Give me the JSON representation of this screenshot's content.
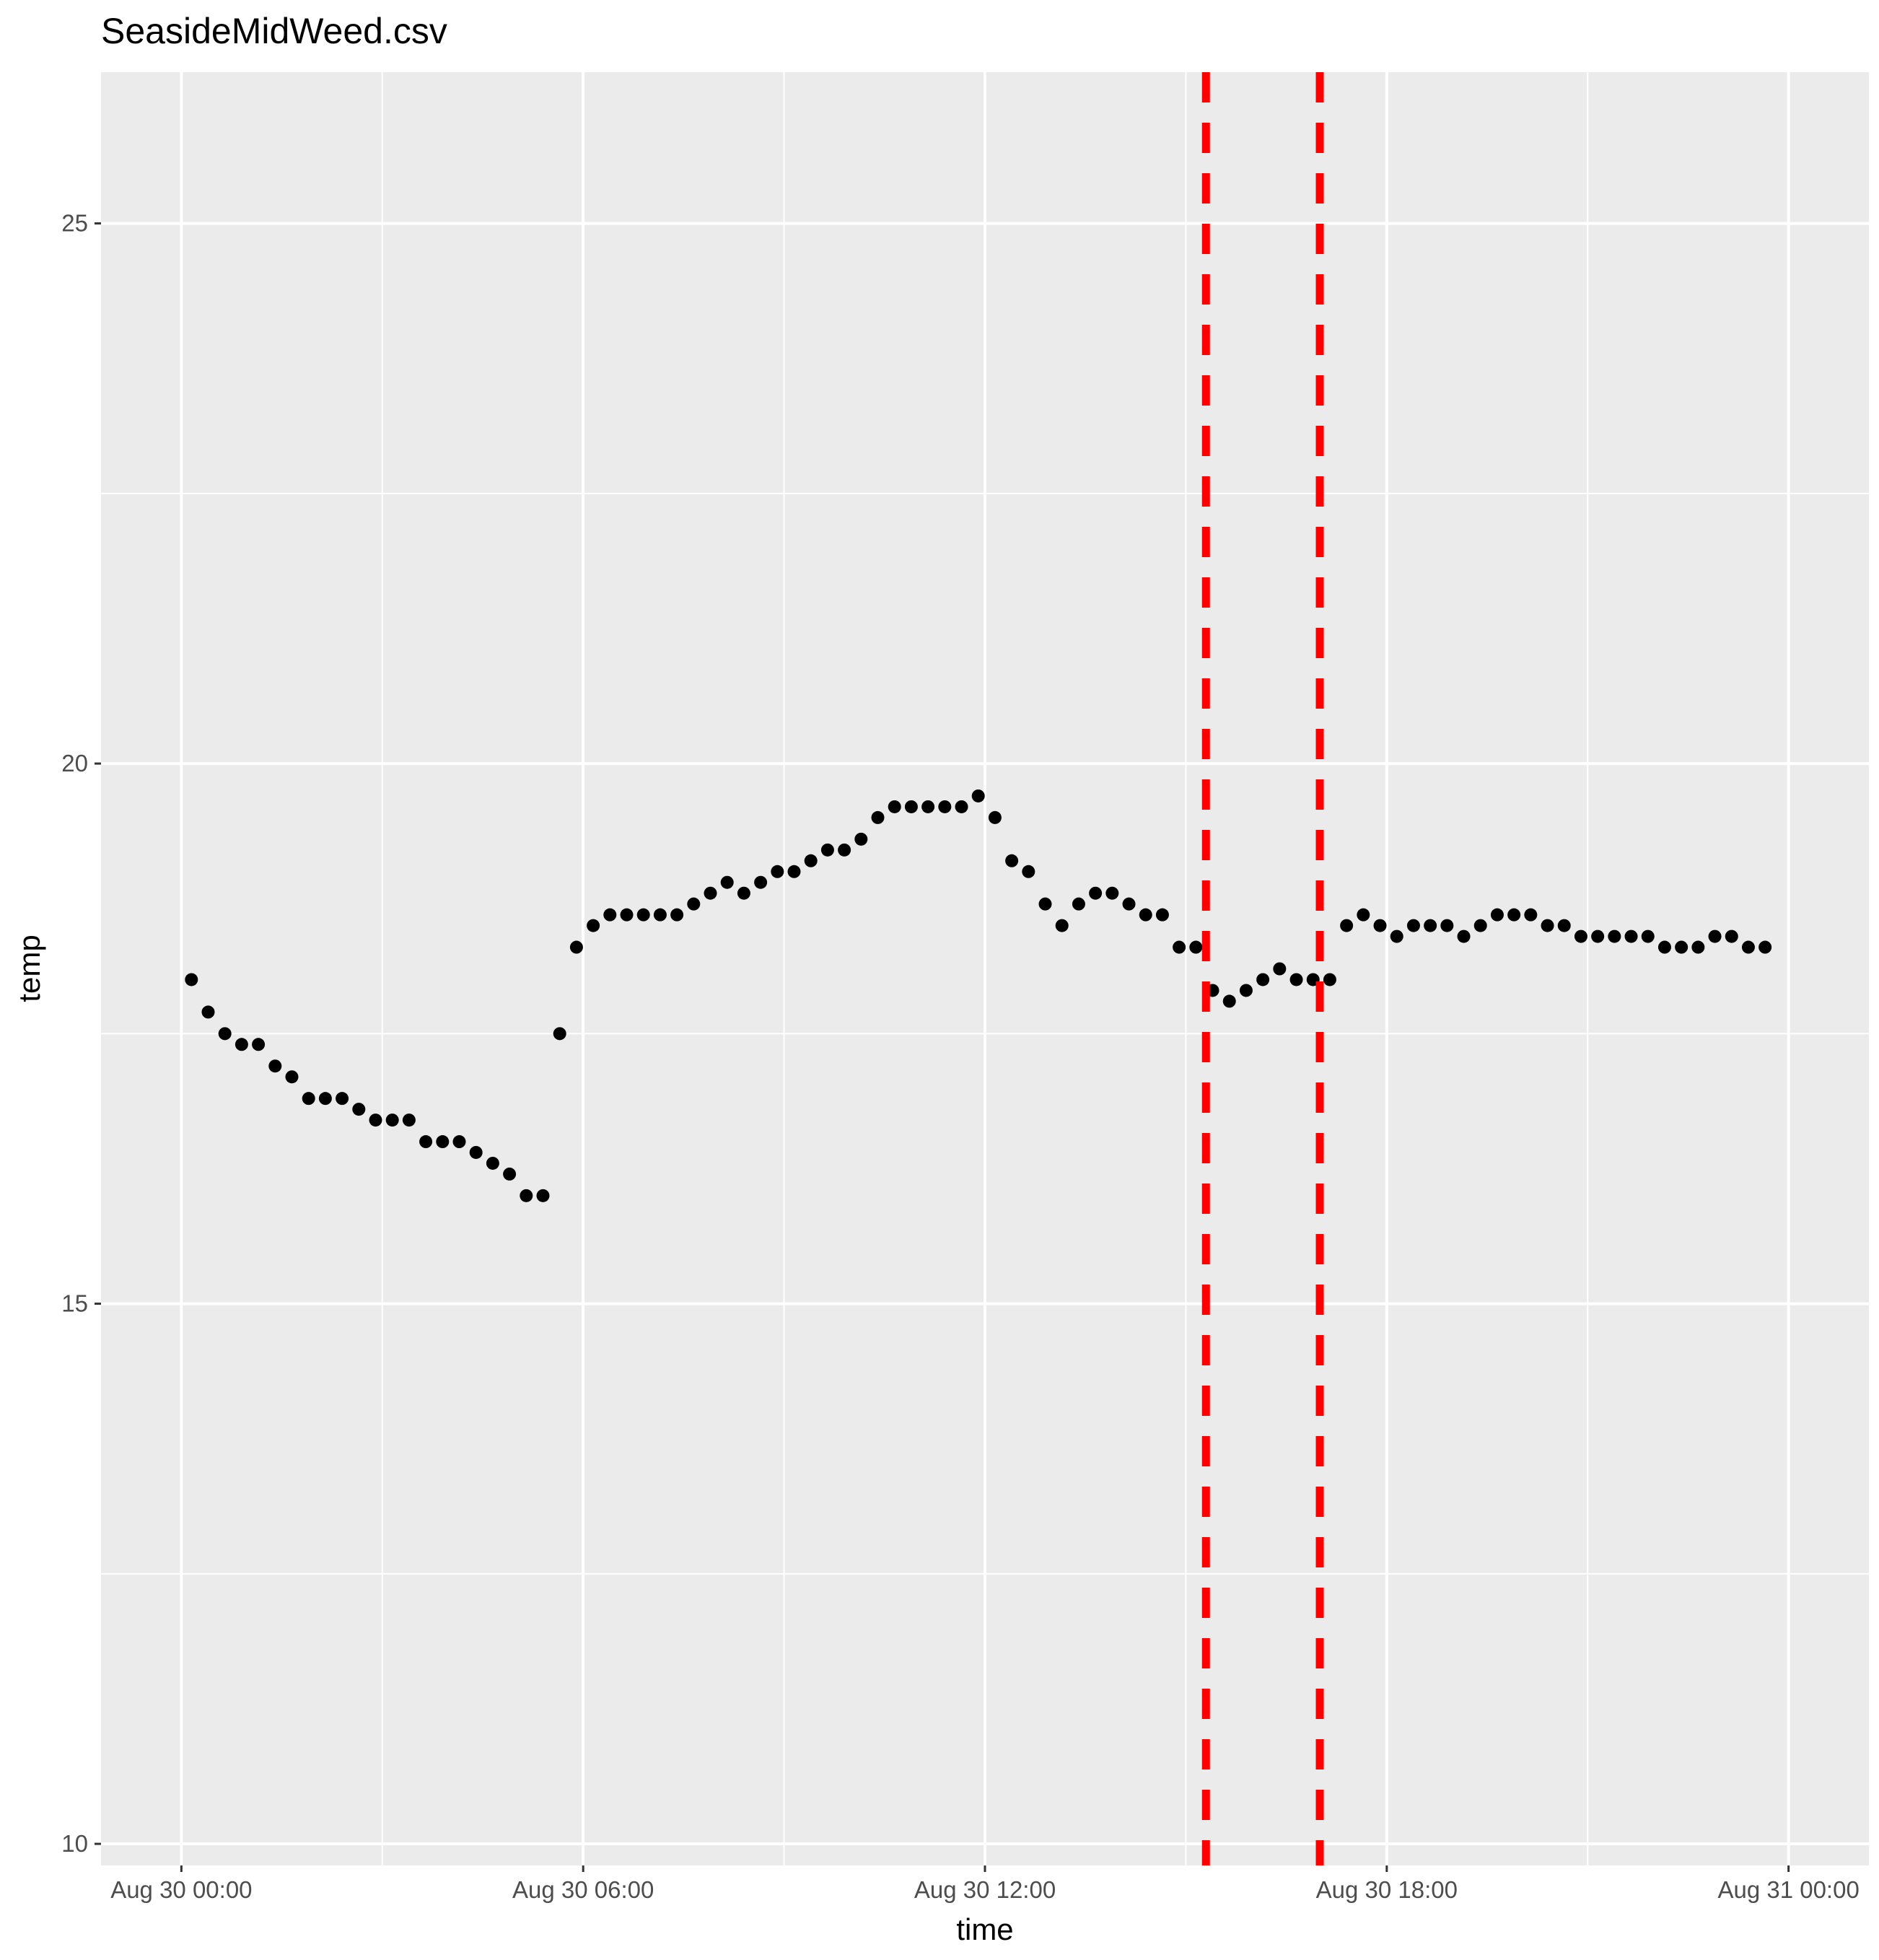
{
  "chart_data": {
    "type": "scatter",
    "title": "SeasideMidWeed.csv",
    "xlabel": "time",
    "ylabel": "temp",
    "x_unit": "hours from Aug 30 00:00",
    "xlim": [
      -1.2,
      25.2
    ],
    "ylim": [
      9.8,
      26.4
    ],
    "x_ticks": [
      {
        "value": 0,
        "label": "Aug 30 00:00"
      },
      {
        "value": 6,
        "label": "Aug 30 06:00"
      },
      {
        "value": 12,
        "label": "Aug 30 12:00"
      },
      {
        "value": 18,
        "label": "Aug 30 18:00"
      },
      {
        "value": 24,
        "label": "Aug 31 00:00"
      }
    ],
    "x_minor_ticks": [
      3,
      9,
      15,
      21
    ],
    "y_ticks": [
      {
        "value": 10,
        "label": "10"
      },
      {
        "value": 15,
        "label": "15"
      },
      {
        "value": 20,
        "label": "20"
      },
      {
        "value": 25,
        "label": "25"
      }
    ],
    "y_minor_ticks": [
      12.5,
      17.5,
      22.5
    ],
    "grid": true,
    "background": "#ebebeb",
    "point_color": "#000000",
    "vlines": {
      "x": [
        15.3,
        17.0
      ],
      "color": "#ff0000",
      "style": "dashed"
    },
    "series": [
      {
        "points": [
          [
            0.15,
            18.0
          ],
          [
            0.4,
            17.7
          ],
          [
            0.65,
            17.5
          ],
          [
            0.9,
            17.4
          ],
          [
            1.15,
            17.4
          ],
          [
            1.4,
            17.2
          ],
          [
            1.65,
            17.1
          ],
          [
            1.9,
            16.9
          ],
          [
            2.15,
            16.9
          ],
          [
            2.4,
            16.9
          ],
          [
            2.65,
            16.8
          ],
          [
            2.9,
            16.7
          ],
          [
            3.15,
            16.7
          ],
          [
            3.4,
            16.7
          ],
          [
            3.65,
            16.5
          ],
          [
            3.9,
            16.5
          ],
          [
            4.15,
            16.5
          ],
          [
            4.4,
            16.4
          ],
          [
            4.65,
            16.3
          ],
          [
            4.9,
            16.2
          ],
          [
            5.15,
            16.0
          ],
          [
            5.4,
            16.0
          ],
          [
            5.65,
            17.5
          ],
          [
            5.9,
            18.3
          ],
          [
            6.15,
            18.5
          ],
          [
            6.4,
            18.6
          ],
          [
            6.65,
            18.6
          ],
          [
            6.9,
            18.6
          ],
          [
            7.15,
            18.6
          ],
          [
            7.4,
            18.6
          ],
          [
            7.65,
            18.7
          ],
          [
            7.9,
            18.8
          ],
          [
            8.15,
            18.9
          ],
          [
            8.4,
            18.8
          ],
          [
            8.65,
            18.9
          ],
          [
            8.9,
            19.0
          ],
          [
            9.15,
            19.0
          ],
          [
            9.4,
            19.1
          ],
          [
            9.65,
            19.2
          ],
          [
            9.9,
            19.2
          ],
          [
            10.15,
            19.3
          ],
          [
            10.4,
            19.5
          ],
          [
            10.65,
            19.6
          ],
          [
            10.9,
            19.6
          ],
          [
            11.15,
            19.6
          ],
          [
            11.4,
            19.6
          ],
          [
            11.65,
            19.6
          ],
          [
            11.9,
            19.7
          ],
          [
            12.15,
            19.5
          ],
          [
            12.4,
            19.1
          ],
          [
            12.65,
            19.0
          ],
          [
            12.9,
            18.7
          ],
          [
            13.15,
            18.5
          ],
          [
            13.4,
            18.7
          ],
          [
            13.65,
            18.8
          ],
          [
            13.9,
            18.8
          ],
          [
            14.15,
            18.7
          ],
          [
            14.4,
            18.6
          ],
          [
            14.65,
            18.6
          ],
          [
            14.9,
            18.3
          ],
          [
            15.15,
            18.3
          ],
          [
            15.4,
            17.9
          ],
          [
            15.65,
            17.8
          ],
          [
            15.9,
            17.9
          ],
          [
            16.15,
            18.0
          ],
          [
            16.4,
            18.1
          ],
          [
            16.65,
            18.0
          ],
          [
            16.9,
            18.0
          ],
          [
            17.15,
            18.0
          ],
          [
            17.4,
            18.5
          ],
          [
            17.65,
            18.6
          ],
          [
            17.9,
            18.5
          ],
          [
            18.15,
            18.4
          ],
          [
            18.4,
            18.5
          ],
          [
            18.65,
            18.5
          ],
          [
            18.9,
            18.5
          ],
          [
            19.15,
            18.4
          ],
          [
            19.4,
            18.5
          ],
          [
            19.65,
            18.6
          ],
          [
            19.9,
            18.6
          ],
          [
            20.15,
            18.6
          ],
          [
            20.4,
            18.5
          ],
          [
            20.65,
            18.5
          ],
          [
            20.9,
            18.4
          ],
          [
            21.15,
            18.4
          ],
          [
            21.4,
            18.4
          ],
          [
            21.65,
            18.4
          ],
          [
            21.9,
            18.4
          ],
          [
            22.15,
            18.3
          ],
          [
            22.4,
            18.3
          ],
          [
            22.65,
            18.3
          ],
          [
            22.9,
            18.4
          ],
          [
            23.15,
            18.4
          ],
          [
            23.4,
            18.3
          ],
          [
            23.65,
            18.3
          ]
        ]
      }
    ]
  }
}
